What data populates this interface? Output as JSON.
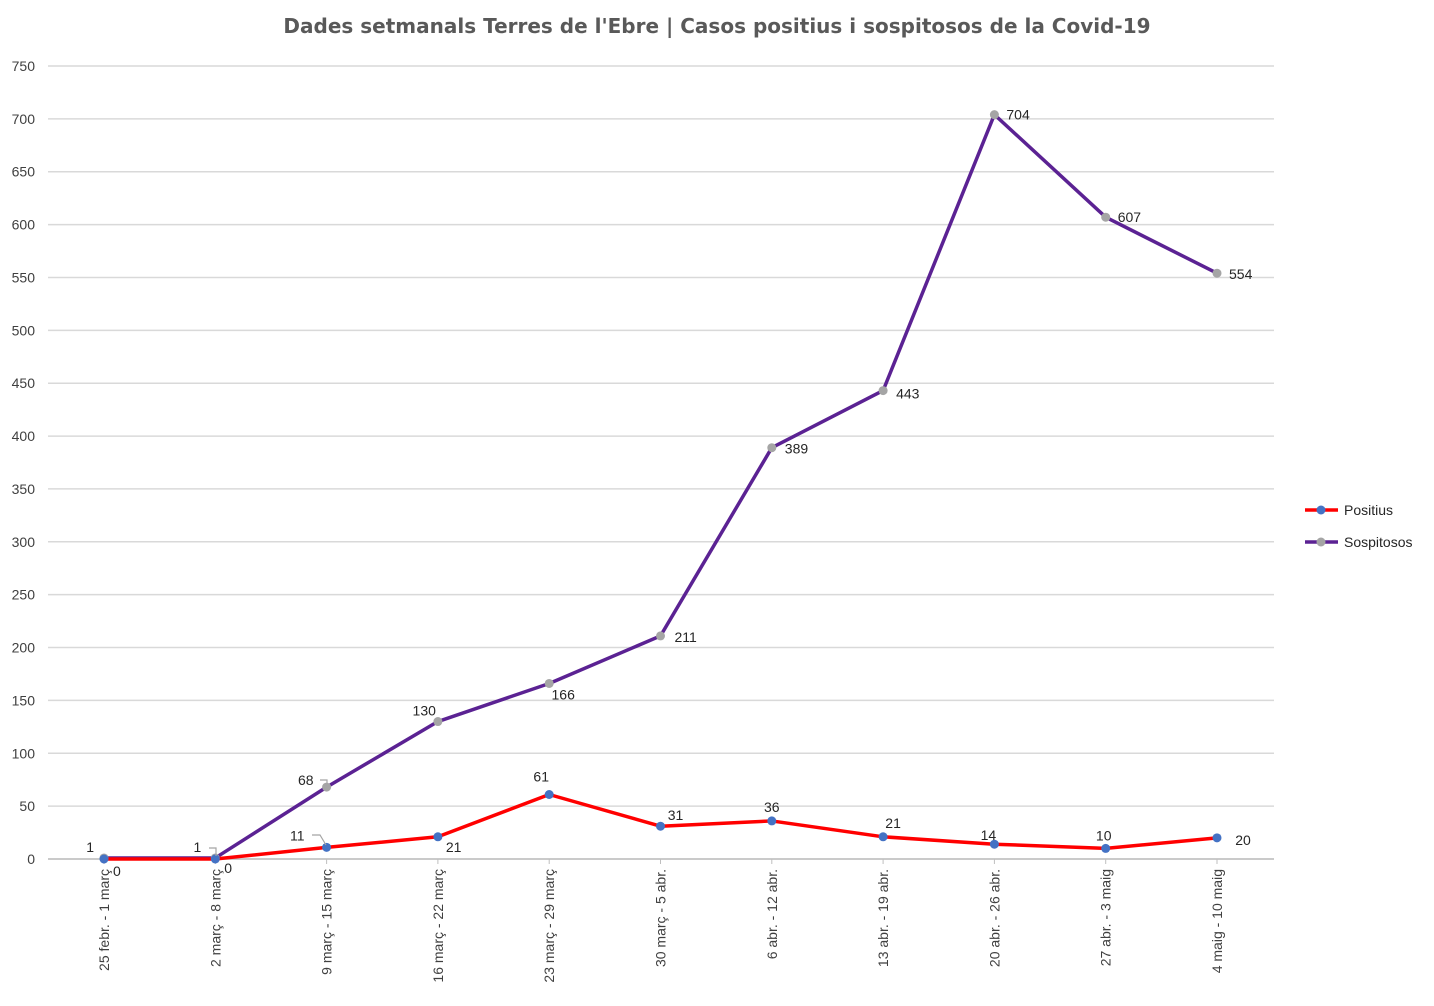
{
  "chart_data": {
    "type": "line",
    "title": "Dades setmanals Terres de l'Ebre | Casos positius i sospitosos de la Covid-19",
    "xlabel": "",
    "ylabel": "",
    "ylim": [
      0,
      750
    ],
    "y_ticks": [
      0,
      50,
      100,
      150,
      200,
      250,
      300,
      350,
      400,
      450,
      500,
      550,
      600,
      650,
      700,
      750
    ],
    "grid": true,
    "legend_position": "right",
    "categories": [
      "25 febr. - 1 març",
      "2 març - 8 març",
      "9 març - 15 març",
      "16 març - 22 març",
      "23 març - 29 març",
      "30 març - 5 abr.",
      "6 abr. - 12 abr.",
      "13 abr. - 19 abr.",
      "20 abr. - 26 abr.",
      "27 abr. - 3 maig",
      "4 maig - 10 maig"
    ],
    "series": [
      {
        "name": "Positius",
        "values": [
          0,
          0,
          11,
          21,
          61,
          31,
          36,
          21,
          14,
          10,
          20
        ],
        "color": "#ff0000",
        "marker_color": "#4472c4"
      },
      {
        "name": "Sospitosos",
        "values": [
          1,
          1,
          68,
          130,
          166,
          211,
          389,
          443,
          704,
          607,
          554
        ],
        "color": "#5b2293",
        "marker_color": "#a5a5a5"
      }
    ]
  }
}
